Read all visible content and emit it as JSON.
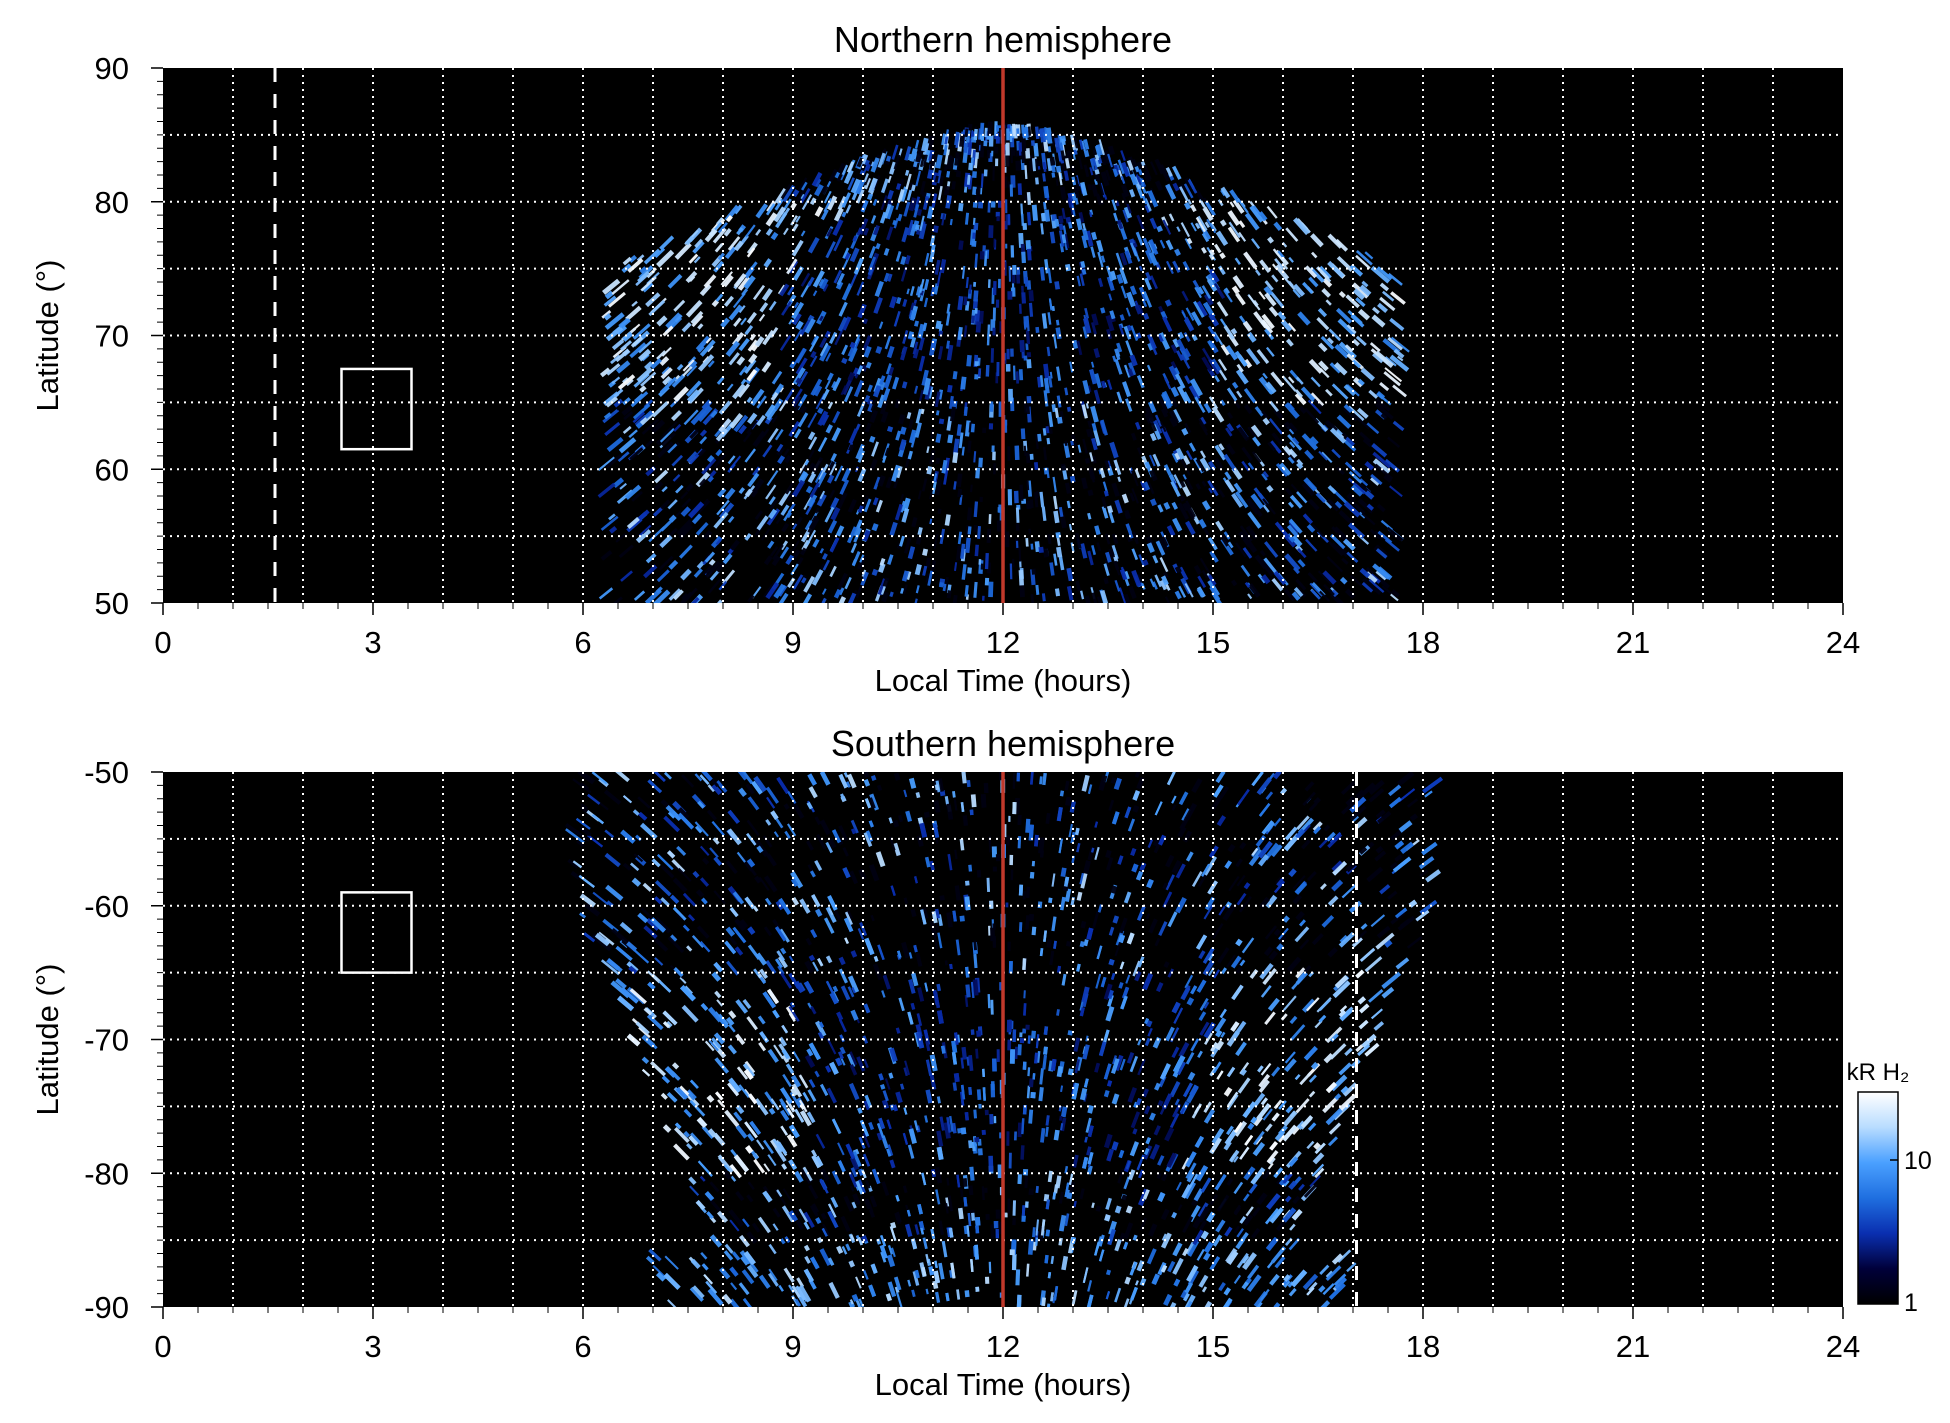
{
  "figure": {
    "background": "#ffffff",
    "plot_background": "#000000",
    "noon_line_color": "#c0392b",
    "grid_color": "#ffffff"
  },
  "chart_data": [
    {
      "type": "heatmap",
      "title": "Northern hemisphere",
      "xlabel": "Local Time (hours)",
      "ylabel": "Latitude (°)",
      "xlim": [
        0,
        24
      ],
      "ylim": [
        50,
        90
      ],
      "xticks": [
        0,
        3,
        6,
        9,
        12,
        15,
        18,
        21,
        24
      ],
      "yticks": [
        50,
        60,
        70,
        80,
        90
      ],
      "x_grid_lines": [
        1,
        2,
        3,
        4,
        5,
        6,
        7,
        8,
        9,
        10,
        11,
        12,
        13,
        14,
        15,
        16,
        17,
        18,
        19,
        20,
        21,
        22,
        23
      ],
      "y_grid_lines": [
        55,
        60,
        65,
        70,
        75,
        80,
        85
      ],
      "grid": true,
      "noon_line_lt": 12,
      "dashed_marker_lt": 1.6,
      "box": {
        "lt": [
          2.55,
          3.55
        ],
        "lat": [
          61.5,
          67.5
        ]
      },
      "emission_region": {
        "lt_start": 6.3,
        "lt_end": 17.7,
        "lat_min": 50,
        "lat_max": 85.5
      },
      "auroral_oval": {
        "bright_lat_band": [
          65,
          80
        ],
        "peak_lt": [
          7.5,
          15.5
        ]
      }
    },
    {
      "type": "heatmap",
      "title": "Southern hemisphere",
      "xlabel": "Local Time (hours)",
      "ylabel": "Latitude (°)",
      "xlim": [
        0,
        24
      ],
      "ylim": [
        -90,
        -50
      ],
      "xticks": [
        0,
        3,
        6,
        9,
        12,
        15,
        18,
        21,
        24
      ],
      "yticks": [
        -90,
        -80,
        -70,
        -60,
        -50
      ],
      "x_grid_lines": [
        1,
        2,
        3,
        4,
        5,
        6,
        7,
        8,
        9,
        10,
        11,
        12,
        13,
        14,
        15,
        16,
        17,
        18,
        19,
        20,
        21,
        22,
        23
      ],
      "y_grid_lines": [
        -85,
        -80,
        -75,
        -70,
        -65,
        -60,
        -55
      ],
      "grid": true,
      "noon_line_lt": 12,
      "dashed_marker_lt": 17.05,
      "box": {
        "lt": [
          2.55,
          3.55
        ],
        "lat": [
          -65,
          -59
        ]
      },
      "emission_region": {
        "lt_start": 6.0,
        "lt_end": 18.3,
        "lat_min": -90,
        "lat_max": -50
      },
      "auroral_oval": {
        "bright_lat_band": [
          -80,
          -65
        ],
        "peak_lt": [
          7.0,
          17.5
        ]
      }
    }
  ],
  "colorbar": {
    "label": "kR H₂",
    "ticks": [
      "1",
      "10"
    ],
    "scale": "log",
    "colors": [
      "#000000",
      "#00003a",
      "#0a2fb0",
      "#1f6fe0",
      "#4aa0ff",
      "#b8dcff",
      "#ffffff"
    ]
  }
}
